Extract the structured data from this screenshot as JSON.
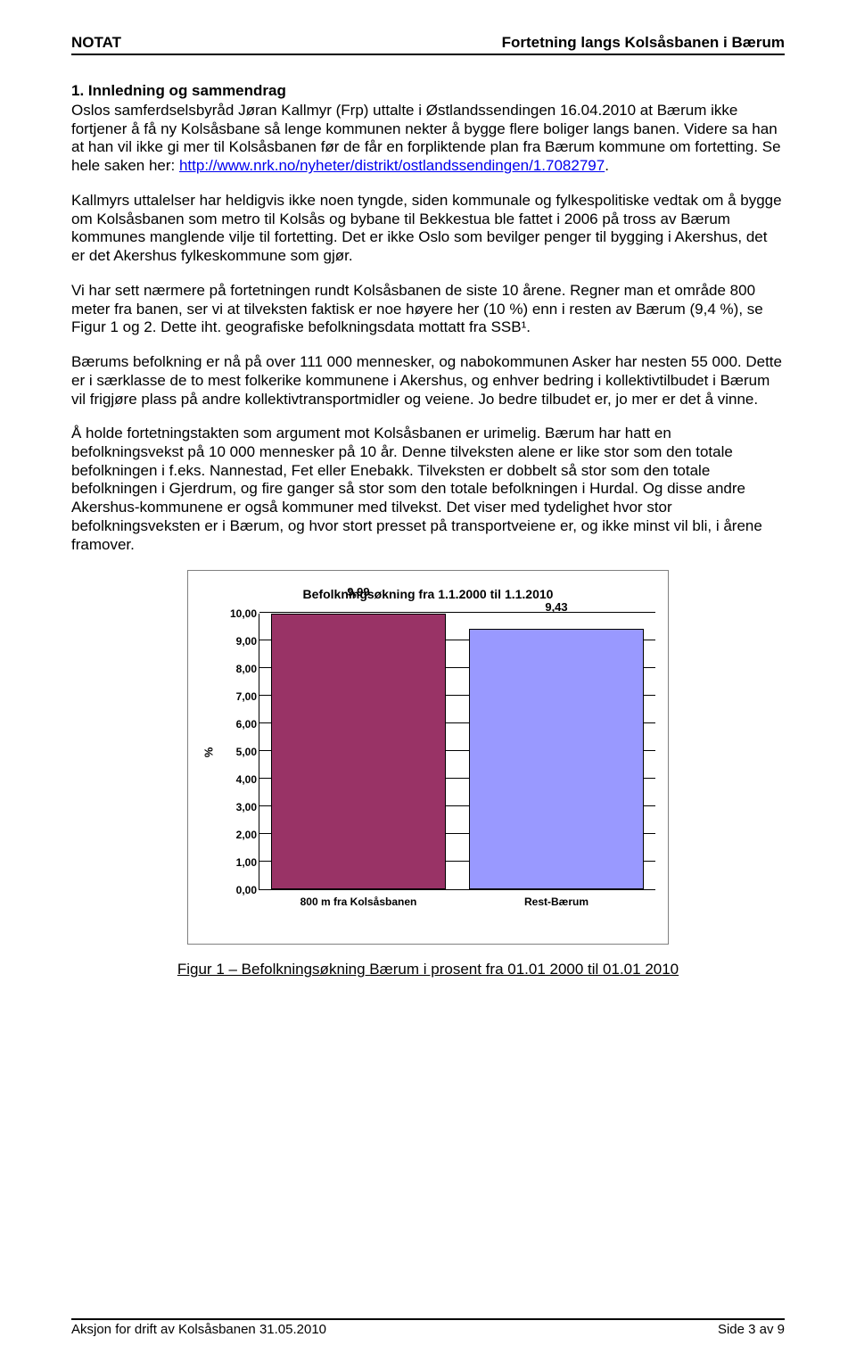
{
  "header": {
    "left": "NOTAT",
    "right": "Fortetning langs Kolsåsbanen i Bærum"
  },
  "section_title": "1.    Innledning og sammendrag",
  "paragraphs": {
    "p1a": "Oslos samferdselsbyråd Jøran Kallmyr (Frp) uttalte i Østlandssendingen 16.04.2010 at Bærum ikke fortjener å få ny Kolsåsbane så lenge kommunen nekter å bygge flere boliger langs banen. Videre sa han at han vil ikke gi mer til Kolsåsbanen før de får en forpliktende plan fra Bærum kommune om fortetting. Se hele saken her: ",
    "p1_link": "http://www.nrk.no/nyheter/distrikt/ostlandssendingen/1.7082797",
    "p1b": ".",
    "p2": "Kallmyrs uttalelser har heldigvis ikke noen tyngde, siden kommunale og fylkespolitiske vedtak om å bygge om Kolsåsbanen som metro til Kolsås og bybane til Bekkestua ble fattet i 2006 på tross av Bærum kommunes manglende vilje til fortetting. Det er ikke Oslo som bevilger penger til bygging i Akershus, det er det Akershus fylkeskommune som gjør.",
    "p3": "Vi har sett nærmere på fortetningen rundt Kolsåsbanen de siste 10 årene. Regner man et område 800 meter fra banen, ser vi at tilveksten faktisk er noe høyere her (10 %) enn i resten av Bærum (9,4 %), se Figur 1 og 2. Dette iht. geografiske befolkningsdata mottatt fra SSB¹.",
    "p4": "Bærums befolkning er nå på over 111 000 mennesker, og nabokommunen Asker har nesten 55 000. Dette er i særklasse de to mest folkerike kommunene i Akershus, og enhver bedring i kollektivtilbudet i Bærum vil frigjøre plass på andre kollektivtransportmidler og veiene. Jo bedre tilbudet er, jo mer er det å vinne.",
    "p5": "Å holde fortetningstakten som argument mot Kolsåsbanen er urimelig. Bærum har hatt en befolkningsvekst på 10 000 mennesker på 10 år. Denne tilveksten alene er like stor som den totale befolkningen i f.eks. Nannestad, Fet eller Enebakk. Tilveksten er dobbelt så stor som den totale befolkningen i Gjerdrum, og fire ganger så stor som den totale befolkningen i Hurdal. Og disse andre Akershus-kommunene er også kommuner med tilvekst. Det viser med tydelighet hvor stor befolkningsveksten er i Bærum, og hvor stort presset på transportveiene er, og ikke minst vil bli, i årene framover."
  },
  "chart": {
    "type": "bar",
    "title": "Befolkningsøkning fra 1.1.2000 til 1.1.2010",
    "ylabel": "%",
    "ylim": [
      0,
      10
    ],
    "ytick_step": 1,
    "yticks": [
      "0,00",
      "1,00",
      "2,00",
      "3,00",
      "4,00",
      "5,00",
      "6,00",
      "7,00",
      "8,00",
      "9,00",
      "10,00"
    ],
    "categories": [
      "800 m fra Kolsåsbanen",
      "Rest-Bærum"
    ],
    "values": [
      9.99,
      9.43
    ],
    "value_labels": [
      "9,99",
      "9,43"
    ],
    "bar_colors": [
      "#993366",
      "#9999ff"
    ],
    "grid_color": "#000000",
    "background_color": "#ffffff",
    "bar_width_pct": 44,
    "title_fontsize": 14,
    "label_fontsize": 12
  },
  "figure_caption": "Figur 1 – Befolkningsøkning Bærum i prosent fra 01.01 2000 til 01.01 2010",
  "footer": {
    "left": "Aksjon for drift av Kolsåsbanen 31.05.2010",
    "right": "Side 3 av 9"
  }
}
